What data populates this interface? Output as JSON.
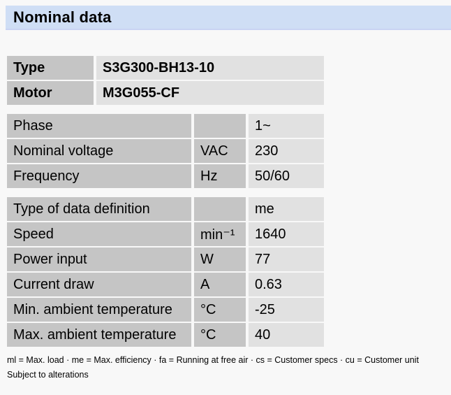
{
  "header": {
    "title": "Nominal data"
  },
  "colors": {
    "page_bg": "#f8f8f8",
    "header_bg": "#cfdef5",
    "header_underline": "#c9d3f3",
    "cell_dark": "#c5c5c5",
    "cell_light": "#e1e1e1",
    "text": "#000000"
  },
  "identity_table": {
    "rows": [
      {
        "label": "Type",
        "value": "S3G300-BH13-10"
      },
      {
        "label": "Motor",
        "value": "M3G055-CF"
      }
    ]
  },
  "spec_sections": [
    {
      "rows": [
        {
          "label": "Phase",
          "unit": "",
          "value": "1~"
        },
        {
          "label": "Nominal voltage",
          "unit": "VAC",
          "value": "230"
        },
        {
          "label": "Frequency",
          "unit": "Hz",
          "value": "50/60"
        }
      ]
    },
    {
      "rows": [
        {
          "label": "Type of data definition",
          "unit": "",
          "value": "me"
        },
        {
          "label": "Speed",
          "unit": "min⁻¹",
          "value": "1640"
        },
        {
          "label": "Power input",
          "unit": "W",
          "value": "77"
        },
        {
          "label": "Current draw",
          "unit": "A",
          "value": "0.63"
        },
        {
          "label": "Min. ambient temperature",
          "unit": "°C",
          "value": "-25"
        },
        {
          "label": "Max. ambient temperature",
          "unit": "°C",
          "value": "40"
        }
      ]
    }
  ],
  "footer": {
    "legend": "ml = Max. load · me = Max. efficiency · fa = Running at free air · cs = Customer specs · cu = Customer unit",
    "note": "Subject to alterations"
  }
}
